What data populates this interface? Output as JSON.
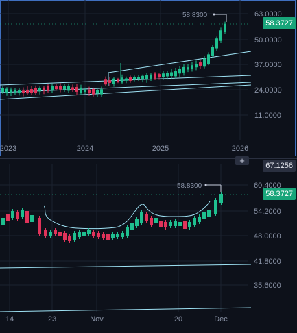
{
  "colors": {
    "background": "#0d111a",
    "up": "#1fbf8f",
    "down": "#e0335a",
    "trendline": "#9fe3f5",
    "grid": "#1c2230",
    "border": "#3f6fbf",
    "badge_green": "#18a57a",
    "badge_gray": "#2a3040",
    "text": "#8a93a6"
  },
  "top_pane": {
    "price_axis": [
      "63.0000",
      "50.0000",
      "37.0000",
      "24.0000",
      "11.0000"
    ],
    "time_axis": [
      "2023",
      "2024",
      "2025",
      "2026"
    ],
    "high_label": "58.8300",
    "last_price": "58.3727"
  },
  "bottom_pane": {
    "crosshair_price": "67.1256",
    "price_axis": [
      "60.4000",
      "54.2000",
      "48.0000",
      "41.8000",
      "35.6000"
    ],
    "time_axis": [
      "14",
      "23",
      "Nov",
      "20",
      "Dec"
    ],
    "high_label": "58.8300",
    "last_price": "58.3727",
    "plus_button": "+"
  }
}
